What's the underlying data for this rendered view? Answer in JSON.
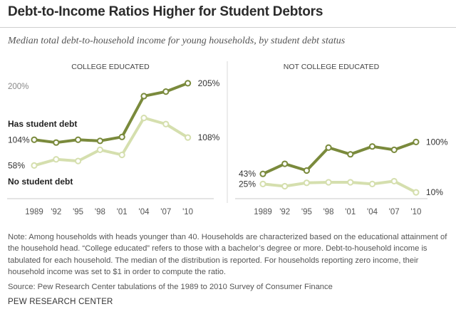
{
  "title": "Debt-to-Income Ratios Higher for Student Debtors",
  "subtitle": "Median total debt-to-household income for young households, by student debt status",
  "colors": {
    "has_debt": "#7a8a3c",
    "no_debt": "#d5dfae",
    "axis": "#c8c8c8",
    "text": "#555555"
  },
  "chart_data": [
    {
      "type": "line",
      "title": "COLLEGE EDUCATED",
      "x": [
        "1989",
        "'92",
        "'95",
        "'98",
        "'01",
        "'04",
        "'07",
        "'10"
      ],
      "y_tick_labels": [
        "200%"
      ],
      "series": [
        {
          "name": "Has student debt",
          "values": [
            104,
            99,
            104,
            102,
            109,
            182,
            190,
            205
          ],
          "start_label": "104%",
          "end_label": "205%"
        },
        {
          "name": "No student debt",
          "values": [
            58,
            69,
            66,
            86,
            77,
            143,
            132,
            108
          ],
          "start_label": "58%",
          "end_label": "108%"
        }
      ]
    },
    {
      "type": "line",
      "title": "NOT COLLEGE EDUCATED",
      "x": [
        "1989",
        "'92",
        "'95",
        "'98",
        "'01",
        "'04",
        "'07",
        "'10"
      ],
      "series": [
        {
          "name": "Has student debt",
          "values": [
            43,
            61,
            49,
            90,
            78,
            92,
            86,
            100
          ],
          "start_label": "43%",
          "end_label": "100%"
        },
        {
          "name": "No student debt",
          "values": [
            25,
            21,
            27,
            28,
            28,
            25,
            30,
            10
          ],
          "start_label": "25%",
          "end_label": "10%"
        }
      ]
    }
  ],
  "note": "Note: Among households with heads younger than 40. Households are characterized based on the educational attainment of the household head. “College educated” refers to those with a bachelor’s degree or more. Debt-to-household income is tabulated for each household. The median of the distribution is reported. For households reporting zero income, their household income was set to $1 in order to compute the ratio.",
  "source": "Source: Pew Research Center tabulations of the 1989 to 2010 Survey of Consumer Finance",
  "brand": "PEW RESEARCH CENTER"
}
